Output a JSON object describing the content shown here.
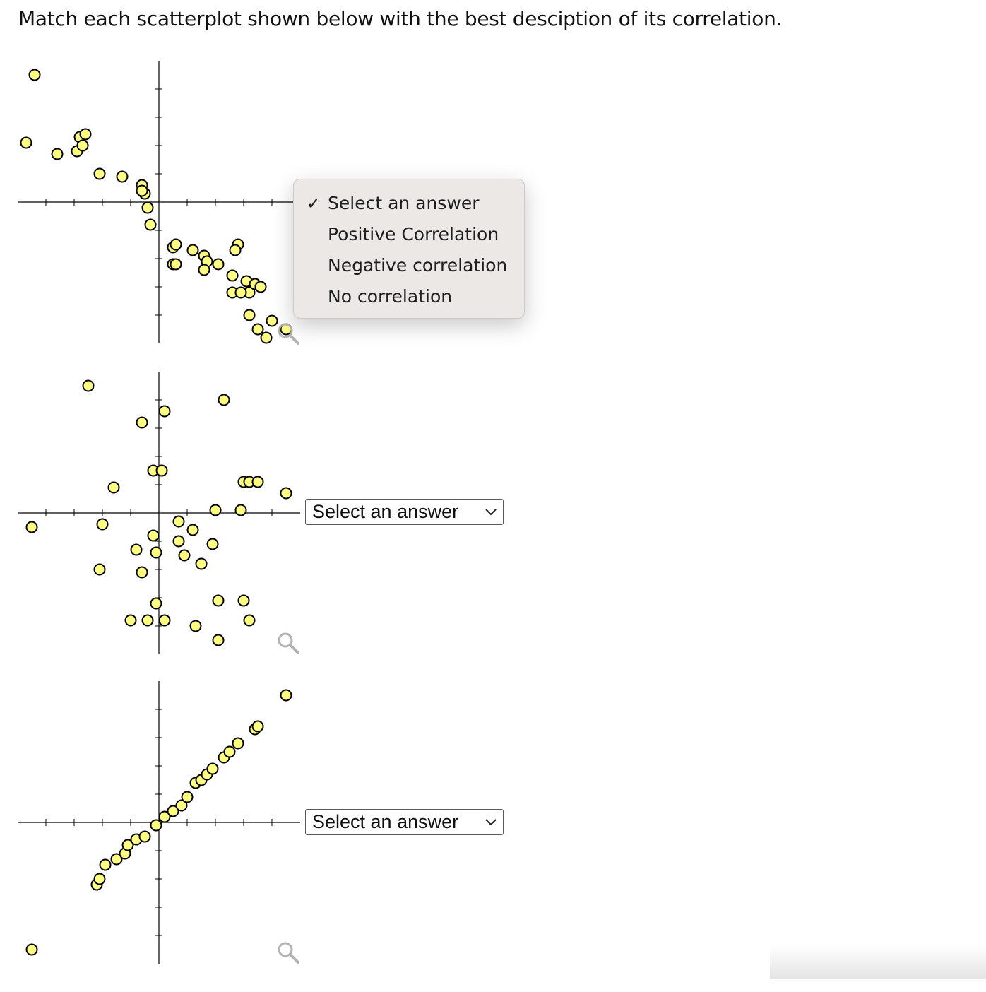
{
  "question": "Match each scatterplot shown below with the best desciption of its correlation.",
  "colors": {
    "point_fill": "#ffff80",
    "point_stroke": "#000000",
    "axis": "#000000",
    "zoom_icon": "#b3b3b3"
  },
  "icons": {
    "zoom": "magnifier-icon",
    "chevron": "chevron-down-icon",
    "check": "checkmark-icon"
  },
  "dropdown_options": [
    "Select an answer",
    "Positive Correlation",
    "Negative correlation",
    "No correlation"
  ],
  "open_menu": {
    "check_mark": "✓",
    "items": [
      {
        "label": "Select an answer",
        "checked": true
      },
      {
        "label": "Positive Correlation",
        "checked": false
      },
      {
        "label": "Negative correlation",
        "checked": false
      },
      {
        "label": "No correlation",
        "checked": false
      }
    ]
  },
  "selects": [
    {
      "selected": "Select an answer",
      "expanded": true
    },
    {
      "selected": "Select an answer",
      "expanded": false
    },
    {
      "selected": "Select an answer",
      "expanded": false
    }
  ],
  "chart_data": [
    {
      "type": "scatter",
      "title": "",
      "xlabel": "",
      "ylabel": "",
      "xlim": [
        -5,
        5
      ],
      "ylim": [
        -5,
        5
      ],
      "grid": false,
      "ticks": "every 1 unit, unlabeled",
      "x": [
        -4.4,
        -4.7,
        -3.6,
        -2.9,
        -2.8,
        -2.6,
        -2.7,
        -2.1,
        -1.3,
        -0.6,
        -0.5,
        -0.6,
        -0.4,
        -0.3,
        0.5,
        0.6,
        0.5,
        0.6,
        1.2,
        1.6,
        1.7,
        1.6,
        2.1,
        2.6,
        2.8,
        2.7,
        2.6,
        3.1,
        3.2,
        2.9,
        3.4,
        3.6,
        3.2,
        3.5,
        3.8,
        4.0,
        4.5
      ],
      "y": [
        4.5,
        2.1,
        1.7,
        1.8,
        2.3,
        2.4,
        2.0,
        1.0,
        0.9,
        0.6,
        0.3,
        0.4,
        -0.2,
        -0.8,
        -1.6,
        -1.5,
        -2.2,
        -2.2,
        -1.7,
        -1.9,
        -2.1,
        -2.4,
        -2.2,
        -2.6,
        -1.5,
        -1.7,
        -3.2,
        -2.8,
        -3.2,
        -3.2,
        -2.9,
        -3.0,
        -4.0,
        -4.5,
        -4.8,
        -4.2,
        -4.5
      ]
    },
    {
      "type": "scatter",
      "title": "",
      "xlabel": "",
      "ylabel": "",
      "xlim": [
        -5,
        5
      ],
      "ylim": [
        -5,
        5
      ],
      "grid": false,
      "ticks": "every 1 unit, unlabeled",
      "x": [
        -2.5,
        0.2,
        2.3,
        -0.6,
        -0.2,
        0.1,
        -1.6,
        3.0,
        3.2,
        3.5,
        4.5,
        2.0,
        2.9,
        -4.5,
        -2.0,
        -2.1,
        0.7,
        1.2,
        0.7,
        1.9,
        1.5,
        -0.8,
        -0.2,
        -0.1,
        0.9,
        -0.6,
        -0.1,
        -1.0,
        -0.4,
        0.2,
        1.3,
        2.1,
        3.0,
        3.2,
        2.1
      ],
      "y": [
        4.5,
        3.6,
        4.0,
        3.2,
        1.5,
        1.5,
        0.9,
        1.1,
        1.1,
        1.1,
        0.7,
        0.1,
        0.1,
        -0.5,
        -0.4,
        -2.0,
        -0.3,
        -0.6,
        -1.0,
        -1.1,
        -1.8,
        -1.3,
        -0.8,
        -1.4,
        -1.5,
        -2.1,
        -3.2,
        -3.8,
        -3.8,
        -3.8,
        -4.0,
        -3.1,
        -3.1,
        -3.8,
        -4.5
      ]
    },
    {
      "type": "scatter",
      "title": "",
      "xlabel": "",
      "ylabel": "",
      "xlim": [
        -5,
        5
      ],
      "ylim": [
        -5,
        5
      ],
      "grid": false,
      "ticks": "every 1 unit, unlabeled",
      "x": [
        -4.5,
        -2.2,
        -2.1,
        -1.9,
        -1.5,
        -1.2,
        -1.1,
        -0.8,
        -0.5,
        -0.1,
        0.2,
        0.5,
        0.8,
        1.0,
        1.3,
        1.5,
        1.7,
        1.9,
        2.3,
        2.5,
        2.8,
        3.4,
        3.5,
        4.5
      ],
      "y": [
        -4.5,
        -2.2,
        -2.0,
        -1.5,
        -1.3,
        -1.1,
        -0.8,
        -0.6,
        -0.5,
        -0.1,
        0.2,
        0.4,
        0.6,
        0.9,
        1.4,
        1.5,
        1.7,
        1.9,
        2.3,
        2.5,
        2.8,
        3.3,
        3.4,
        4.5
      ]
    }
  ]
}
